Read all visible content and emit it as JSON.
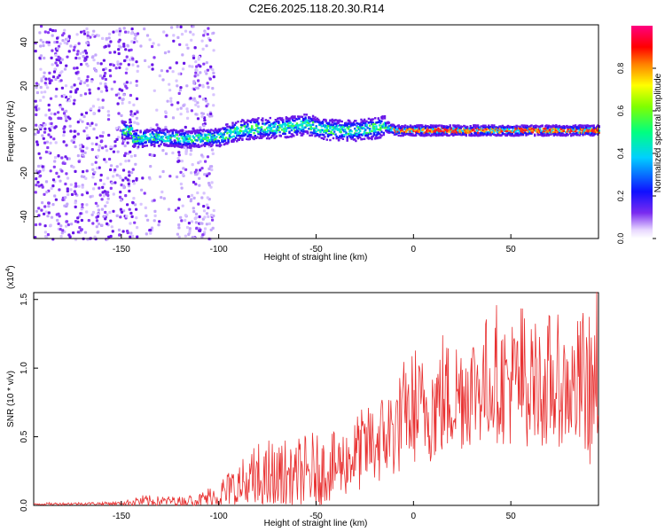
{
  "title": "C2E6.2025.118.20.30.R14",
  "colors": {
    "snr_line": "#e83030",
    "frame": "#000000"
  },
  "chart_data": [
    {
      "type": "heatmap",
      "xlabel": "Height of straight line (km)",
      "ylabel": "Frequency (Hz)",
      "xlim": [
        -195,
        95
      ],
      "ylim": [
        -50,
        48
      ],
      "xticks": [
        -150,
        -100,
        -50,
        0,
        50
      ],
      "yticks": [
        -40,
        -20,
        0,
        20,
        40
      ],
      "colorbar": {
        "label": "Normalized spectral amplitude",
        "range": [
          0,
          1
        ],
        "ticks": [
          "0.0",
          "0.2",
          "0.4",
          "0.6",
          "0.8"
        ],
        "colormap": "rainbow (white→purple→blue→cyan→green→yellow→red→magenta)"
      },
      "ridge": [
        {
          "x": -145,
          "freq": -4
        },
        {
          "x": -130,
          "freq": -3
        },
        {
          "x": -115,
          "freq": -4
        },
        {
          "x": -100,
          "freq": -3
        },
        {
          "x": -90,
          "freq": 0
        },
        {
          "x": -80,
          "freq": 1
        },
        {
          "x": -70,
          "freq": 1
        },
        {
          "x": -60,
          "freq": 2
        },
        {
          "x": -55,
          "freq": 3
        },
        {
          "x": -50,
          "freq": 1
        },
        {
          "x": -40,
          "freq": 0
        },
        {
          "x": -30,
          "freq": 0
        },
        {
          "x": -20,
          "freq": 1
        },
        {
          "x": -15,
          "freq": 2
        },
        {
          "x": -10,
          "freq": 0
        },
        {
          "x": 0,
          "freq": 0
        },
        {
          "x": 20,
          "freq": 0
        },
        {
          "x": 50,
          "freq": 0
        },
        {
          "x": 95,
          "freq": 0
        }
      ]
    },
    {
      "type": "line",
      "xlabel": "Height of straight line (km)",
      "ylabel": "SNR (10 * v/v)",
      "y_multiplier": "(x10",
      "y_multiplier_exp": "4",
      "y_multiplier_close": ")",
      "xlim": [
        -195,
        95
      ],
      "ylim": [
        0,
        1.55
      ],
      "xticks": [
        -150,
        -100,
        -50,
        0,
        50
      ],
      "yticks": [
        "0.0",
        "0.5",
        "1.0",
        "1.5"
      ],
      "series": [
        {
          "x": [
            -195,
            -150,
            -140,
            -120,
            -110,
            -100,
            -90,
            -80,
            -70,
            -60,
            -50,
            -40,
            -30,
            -20,
            -10,
            0,
            10,
            20,
            30,
            40,
            50,
            60,
            70,
            80,
            95
          ],
          "mean": [
            0.01,
            0.015,
            0.03,
            0.03,
            0.04,
            0.07,
            0.12,
            0.16,
            0.18,
            0.2,
            0.24,
            0.28,
            0.36,
            0.45,
            0.55,
            0.68,
            0.72,
            0.8,
            0.86,
            0.9,
            0.9,
            0.88,
            0.86,
            0.85,
            0.84
          ],
          "peak": [
            0.02,
            0.03,
            0.08,
            0.07,
            0.1,
            0.22,
            0.38,
            0.45,
            0.5,
            0.5,
            0.55,
            0.58,
            0.7,
            0.85,
            1.0,
            1.15,
            1.25,
            1.35,
            1.4,
            1.45,
            1.5,
            1.45,
            1.4,
            1.38,
            1.6
          ]
        }
      ]
    }
  ]
}
